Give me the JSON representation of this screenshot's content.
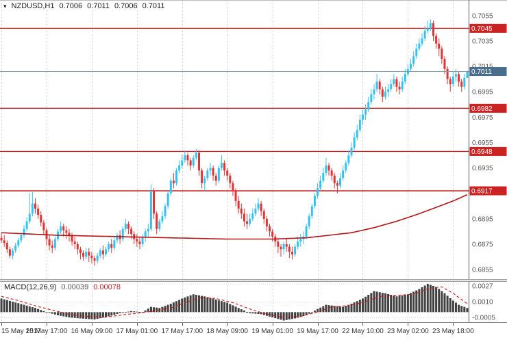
{
  "header": {
    "marker_glyph": "▾",
    "symbol": "NZDUSD,H1",
    "open": "0.7006",
    "high": "0.7011",
    "low": "0.7006",
    "close": "0.7011"
  },
  "macd_panel": {
    "label": "MACD(12,26,9)",
    "value_main": "0.00039",
    "value_signal": "0.00078"
  },
  "colors": {
    "up": "#36c2f0",
    "down": "#e03434",
    "level": "#cc2222",
    "ma": "#b51414",
    "current_line": "#7b9cba",
    "current_badge": "#4a6d8c",
    "hist": "#404040",
    "signal": "#cc2222",
    "grid": "#d4d4d4",
    "tick_text": "#555555",
    "axis_line": "#555555"
  },
  "chart_data": {
    "type": "candlestick",
    "title": "NZDUSD,H1",
    "symbol": "NZDUSD",
    "timeframe": "H1",
    "price_range": {
      "top": 0.70673,
      "bottom": 0.68475
    },
    "macd_range": {
      "top": 0.00289,
      "bottom": -0.00089
    },
    "price_ticks": [
      0.7055,
      0.7035,
      0.7015,
      0.6995,
      0.6975,
      0.6955,
      0.6935,
      0.6895,
      0.6875,
      0.6855
    ],
    "levels": [
      0.7045,
      0.6982,
      0.6948,
      0.6917
    ],
    "current_price": 0.7011,
    "macd_ticks": [
      0.0027,
      0.001,
      -0.0005
    ],
    "time_labels": [
      [
        0,
        "15 May 2017"
      ],
      [
        16,
        "15 May 17:00"
      ],
      [
        32,
        "16 May 09:00"
      ],
      [
        48,
        "17 May 01:00"
      ],
      [
        64,
        "17 May 17:00"
      ],
      [
        80,
        "18 May 09:00"
      ],
      [
        96,
        "19 May 01:00"
      ],
      [
        112,
        "19 May 17:00"
      ],
      [
        128,
        "22 May 10:00"
      ],
      [
        144,
        "23 May 02:00"
      ],
      [
        160,
        "23 May 18:00"
      ]
    ],
    "candles": [
      [
        0.688,
        0.6884,
        0.6876,
        0.6878
      ],
      [
        0.6878,
        0.6882,
        0.6873,
        0.6876
      ],
      [
        0.6876,
        0.6878,
        0.6868,
        0.6871
      ],
      [
        0.6871,
        0.6873,
        0.6864,
        0.6866
      ],
      [
        0.6866,
        0.6872,
        0.6863,
        0.687
      ],
      [
        0.687,
        0.6876,
        0.6868,
        0.6874
      ],
      [
        0.6874,
        0.688,
        0.6872,
        0.6878
      ],
      [
        0.6878,
        0.6884,
        0.6876,
        0.6882
      ],
      [
        0.6882,
        0.689,
        0.688,
        0.6887
      ],
      [
        0.6887,
        0.6896,
        0.6885,
        0.6893
      ],
      [
        0.6893,
        0.6915,
        0.6891,
        0.6899
      ],
      [
        0.6899,
        0.6916,
        0.6897,
        0.6907
      ],
      [
        0.6907,
        0.6911,
        0.6899,
        0.6903
      ],
      [
        0.6903,
        0.6906,
        0.6895,
        0.6898
      ],
      [
        0.6898,
        0.6901,
        0.6889,
        0.6892
      ],
      [
        0.6892,
        0.6894,
        0.6882,
        0.6886
      ],
      [
        0.6886,
        0.6888,
        0.6874,
        0.6879
      ],
      [
        0.6879,
        0.6882,
        0.687,
        0.6874
      ],
      [
        0.6874,
        0.6878,
        0.6868,
        0.6872
      ],
      [
        0.6872,
        0.6881,
        0.687,
        0.6879
      ],
      [
        0.6879,
        0.6887,
        0.6877,
        0.6885
      ],
      [
        0.6885,
        0.6893,
        0.6883,
        0.6889
      ],
      [
        0.6889,
        0.6891,
        0.6881,
        0.6886
      ],
      [
        0.6886,
        0.6889,
        0.6879,
        0.6884
      ],
      [
        0.6884,
        0.6887,
        0.6877,
        0.6882
      ],
      [
        0.6882,
        0.6884,
        0.6874,
        0.6877
      ],
      [
        0.6877,
        0.6881,
        0.6871,
        0.6875
      ],
      [
        0.6875,
        0.6877,
        0.6867,
        0.6871
      ],
      [
        0.6871,
        0.6873,
        0.6863,
        0.6868
      ],
      [
        0.6868,
        0.687,
        0.6862,
        0.6865
      ],
      [
        0.6865,
        0.6872,
        0.6863,
        0.6869
      ],
      [
        0.6869,
        0.6872,
        0.6861,
        0.6866
      ],
      [
        0.6866,
        0.6869,
        0.686,
        0.6864
      ],
      [
        0.6864,
        0.6866,
        0.6858,
        0.6862
      ],
      [
        0.6862,
        0.6868,
        0.686,
        0.6866
      ],
      [
        0.6866,
        0.6872,
        0.6864,
        0.687
      ],
      [
        0.687,
        0.6874,
        0.6863,
        0.6867
      ],
      [
        0.6867,
        0.6873,
        0.6865,
        0.6871
      ],
      [
        0.6871,
        0.6877,
        0.6869,
        0.6875
      ],
      [
        0.6875,
        0.6879,
        0.6868,
        0.6872
      ],
      [
        0.6872,
        0.688,
        0.687,
        0.6878
      ],
      [
        0.6878,
        0.6884,
        0.6876,
        0.6882
      ],
      [
        0.6882,
        0.6886,
        0.6875,
        0.6879
      ],
      [
        0.6879,
        0.6889,
        0.6877,
        0.6887
      ],
      [
        0.6887,
        0.6895,
        0.6885,
        0.6891
      ],
      [
        0.6891,
        0.6893,
        0.6883,
        0.6887
      ],
      [
        0.6887,
        0.6889,
        0.6879,
        0.6883
      ],
      [
        0.6883,
        0.6885,
        0.6875,
        0.6879
      ],
      [
        0.6879,
        0.6883,
        0.6873,
        0.6877
      ],
      [
        0.6877,
        0.6881,
        0.6871,
        0.6875
      ],
      [
        0.6875,
        0.6883,
        0.6873,
        0.6881
      ],
      [
        0.6881,
        0.6887,
        0.6877,
        0.6885
      ],
      [
        0.6885,
        0.6891,
        0.6881,
        0.6887
      ],
      [
        0.6887,
        0.6922,
        0.6885,
        0.6917
      ],
      [
        0.6917,
        0.6919,
        0.6895,
        0.6899
      ],
      [
        0.6899,
        0.6901,
        0.6883,
        0.6887
      ],
      [
        0.6887,
        0.6895,
        0.6885,
        0.6893
      ],
      [
        0.6893,
        0.6901,
        0.6891,
        0.6897
      ],
      [
        0.6897,
        0.6907,
        0.6895,
        0.6905
      ],
      [
        0.6905,
        0.6917,
        0.6903,
        0.6915
      ],
      [
        0.6915,
        0.6927,
        0.6913,
        0.6925
      ],
      [
        0.6925,
        0.6931,
        0.6919,
        0.6923
      ],
      [
        0.6923,
        0.6935,
        0.6921,
        0.6933
      ],
      [
        0.6933,
        0.6941,
        0.6931,
        0.6937
      ],
      [
        0.6937,
        0.6945,
        0.6935,
        0.6941
      ],
      [
        0.6941,
        0.6949,
        0.6939,
        0.6945
      ],
      [
        0.6945,
        0.6947,
        0.6937,
        0.6941
      ],
      [
        0.6941,
        0.6943,
        0.6933,
        0.6937
      ],
      [
        0.6937,
        0.6945,
        0.6935,
        0.6943
      ],
      [
        0.6943,
        0.695,
        0.6941,
        0.6947
      ],
      [
        0.6947,
        0.6949,
        0.6929,
        0.6933
      ],
      [
        0.6933,
        0.6935,
        0.6919,
        0.6923
      ],
      [
        0.6923,
        0.6929,
        0.6917,
        0.6927
      ],
      [
        0.6927,
        0.6935,
        0.6925,
        0.6933
      ],
      [
        0.6933,
        0.6939,
        0.6929,
        0.6935
      ],
      [
        0.6935,
        0.6937,
        0.6925,
        0.6929
      ],
      [
        0.6929,
        0.6931,
        0.6921,
        0.6925
      ],
      [
        0.6925,
        0.6937,
        0.6923,
        0.6935
      ],
      [
        0.6935,
        0.6945,
        0.6933,
        0.6939
      ],
      [
        0.6939,
        0.6941,
        0.6929,
        0.6933
      ],
      [
        0.6933,
        0.6935,
        0.6925,
        0.6929
      ],
      [
        0.6929,
        0.6931,
        0.6919,
        0.6923
      ],
      [
        0.6923,
        0.6925,
        0.6913,
        0.6917
      ],
      [
        0.6917,
        0.6919,
        0.6905,
        0.6909
      ],
      [
        0.6909,
        0.6913,
        0.6899,
        0.6903
      ],
      [
        0.6903,
        0.6907,
        0.6895,
        0.6899
      ],
      [
        0.6899,
        0.6903,
        0.6889,
        0.6893
      ],
      [
        0.6893,
        0.6899,
        0.6887,
        0.6891
      ],
      [
        0.6891,
        0.6899,
        0.6889,
        0.6895
      ],
      [
        0.6895,
        0.6903,
        0.6893,
        0.6899
      ],
      [
        0.6899,
        0.6907,
        0.6897,
        0.6903
      ],
      [
        0.6903,
        0.6911,
        0.6901,
        0.6907
      ],
      [
        0.6907,
        0.6909,
        0.6897,
        0.6901
      ],
      [
        0.6901,
        0.6903,
        0.6891,
        0.6895
      ],
      [
        0.6895,
        0.6897,
        0.6885,
        0.6889
      ],
      [
        0.6889,
        0.6891,
        0.6881,
        0.6885
      ],
      [
        0.6885,
        0.6887,
        0.6877,
        0.6881
      ],
      [
        0.6881,
        0.6883,
        0.6873,
        0.6877
      ],
      [
        0.6877,
        0.6879,
        0.6868,
        0.6873
      ],
      [
        0.6873,
        0.6875,
        0.6865,
        0.6871
      ],
      [
        0.6871,
        0.6877,
        0.6867,
        0.6875
      ],
      [
        0.6875,
        0.6879,
        0.6869,
        0.6873
      ],
      [
        0.6873,
        0.6875,
        0.6864,
        0.6869
      ],
      [
        0.6869,
        0.6873,
        0.6863,
        0.6867
      ],
      [
        0.6867,
        0.6875,
        0.6865,
        0.6873
      ],
      [
        0.6873,
        0.6881,
        0.6871,
        0.6877
      ],
      [
        0.6877,
        0.6883,
        0.6873,
        0.6879
      ],
      [
        0.6879,
        0.6885,
        0.6875,
        0.6881
      ],
      [
        0.6881,
        0.6891,
        0.6879,
        0.6889
      ],
      [
        0.6889,
        0.6899,
        0.6887,
        0.6897
      ],
      [
        0.6897,
        0.6907,
        0.6895,
        0.6905
      ],
      [
        0.6905,
        0.6915,
        0.6903,
        0.6913
      ],
      [
        0.6913,
        0.6923,
        0.6911,
        0.6919
      ],
      [
        0.6919,
        0.6929,
        0.6917,
        0.6925
      ],
      [
        0.6925,
        0.6935,
        0.6923,
        0.6931
      ],
      [
        0.6931,
        0.6943,
        0.6929,
        0.6937
      ],
      [
        0.6937,
        0.6939,
        0.6929,
        0.6933
      ],
      [
        0.6933,
        0.6935,
        0.6925,
        0.6929
      ],
      [
        0.6929,
        0.6931,
        0.6919,
        0.6923
      ],
      [
        0.6923,
        0.6925,
        0.6915,
        0.6921
      ],
      [
        0.6921,
        0.6931,
        0.6919,
        0.6927
      ],
      [
        0.6927,
        0.6937,
        0.6925,
        0.6933
      ],
      [
        0.6933,
        0.6941,
        0.6931,
        0.6939
      ],
      [
        0.6939,
        0.6949,
        0.6937,
        0.6945
      ],
      [
        0.6945,
        0.6955,
        0.6943,
        0.6951
      ],
      [
        0.6951,
        0.6963,
        0.6949,
        0.6959
      ],
      [
        0.6959,
        0.6969,
        0.6957,
        0.6965
      ],
      [
        0.6965,
        0.6977,
        0.6963,
        0.6973
      ],
      [
        0.6973,
        0.6981,
        0.6969,
        0.6977
      ],
      [
        0.6977,
        0.6985,
        0.6973,
        0.6981
      ],
      [
        0.6981,
        0.6991,
        0.6979,
        0.6987
      ],
      [
        0.6987,
        0.6997,
        0.6985,
        0.6993
      ],
      [
        0.6993,
        0.7001,
        0.6989,
        0.6997
      ],
      [
        0.6997,
        0.7009,
        0.6995,
        0.7003
      ],
      [
        0.7003,
        0.7005,
        0.6993,
        0.6997
      ],
      [
        0.6997,
        0.6999,
        0.6987,
        0.6991
      ],
      [
        0.6991,
        0.6999,
        0.6989,
        0.6995
      ],
      [
        0.6995,
        0.7001,
        0.6991,
        0.6997
      ],
      [
        0.6997,
        0.7005,
        0.6995,
        0.7001
      ],
      [
        0.7001,
        0.7009,
        0.6999,
        0.7005
      ],
      [
        0.7005,
        0.7007,
        0.6995,
        0.6999
      ],
      [
        0.6999,
        0.7003,
        0.6993,
        0.6997
      ],
      [
        0.6997,
        0.7007,
        0.6995,
        0.7003
      ],
      [
        0.7003,
        0.7013,
        0.7001,
        0.7009
      ],
      [
        0.7009,
        0.7017,
        0.7007,
        0.7013
      ],
      [
        0.7013,
        0.7021,
        0.7011,
        0.7017
      ],
      [
        0.7017,
        0.7027,
        0.7015,
        0.7023
      ],
      [
        0.7023,
        0.7033,
        0.7021,
        0.7029
      ],
      [
        0.7029,
        0.7037,
        0.7027,
        0.7033
      ],
      [
        0.7033,
        0.7041,
        0.7031,
        0.7037
      ],
      [
        0.7037,
        0.7047,
        0.7035,
        0.7043
      ],
      [
        0.7043,
        0.7051,
        0.7041,
        0.7045
      ],
      [
        0.7045,
        0.7052,
        0.7043,
        0.7049
      ],
      [
        0.7049,
        0.7051,
        0.7035,
        0.7039
      ],
      [
        0.7039,
        0.7041,
        0.7029,
        0.7033
      ],
      [
        0.7033,
        0.7037,
        0.7023,
        0.7029
      ],
      [
        0.7029,
        0.7031,
        0.7017,
        0.7021
      ],
      [
        0.7021,
        0.7023,
        0.7009,
        0.7013
      ],
      [
        0.7013,
        0.7015,
        0.7001,
        0.7005
      ],
      [
        0.7005,
        0.7007,
        0.6995,
        0.7001
      ],
      [
        0.7001,
        0.7011,
        0.6999,
        0.7007
      ],
      [
        0.7007,
        0.7013,
        0.7003,
        0.7009
      ],
      [
        0.7009,
        0.7011,
        0.6999,
        0.7003
      ],
      [
        0.7003,
        0.7005,
        0.6995,
        0.6999
      ],
      [
        0.6999,
        0.7009,
        0.6997,
        0.7006
      ],
      [
        0.7006,
        0.7011,
        0.7006,
        0.7011
      ]
    ],
    "ma_keypoints": [
      [
        0,
        0.6884
      ],
      [
        20,
        0.6882
      ],
      [
        40,
        0.6881
      ],
      [
        60,
        0.688
      ],
      [
        80,
        0.6879
      ],
      [
        96,
        0.6879
      ],
      [
        108,
        0.688
      ],
      [
        116,
        0.6882
      ],
      [
        124,
        0.6884
      ],
      [
        132,
        0.6888
      ],
      [
        140,
        0.6893
      ],
      [
        148,
        0.6899
      ],
      [
        154,
        0.6904
      ],
      [
        160,
        0.6909
      ],
      [
        165,
        0.6914
      ]
    ],
    "macd_keypoints": [
      [
        0,
        0.0013
      ],
      [
        4,
        0.001
      ],
      [
        8,
        0.0007
      ],
      [
        12,
        0.0004
      ],
      [
        16,
        0.0
      ],
      [
        20,
        -0.0003
      ],
      [
        24,
        -0.0005
      ],
      [
        28,
        -0.0006
      ],
      [
        33,
        -0.0007
      ],
      [
        38,
        -0.0004
      ],
      [
        42,
        -0.0001
      ],
      [
        46,
        0.0001
      ],
      [
        50,
        0.0
      ],
      [
        53,
        0.0005
      ],
      [
        56,
        0.0004
      ],
      [
        60,
        0.0008
      ],
      [
        64,
        0.0013
      ],
      [
        68,
        0.0017
      ],
      [
        72,
        0.0015
      ],
      [
        76,
        0.0012
      ],
      [
        80,
        0.0009
      ],
      [
        84,
        0.0004
      ],
      [
        88,
        -0.0001
      ],
      [
        92,
        -0.0002
      ],
      [
        96,
        -0.0005
      ],
      [
        100,
        -0.0008
      ],
      [
        104,
        -0.0006
      ],
      [
        108,
        -0.0003
      ],
      [
        112,
        0.0003
      ],
      [
        115,
        0.0007
      ],
      [
        118,
        0.0006
      ],
      [
        121,
        0.0005
      ],
      [
        124,
        0.0008
      ],
      [
        128,
        0.0013
      ],
      [
        132,
        0.002
      ],
      [
        136,
        0.0018
      ],
      [
        140,
        0.0015
      ],
      [
        144,
        0.0017
      ],
      [
        148,
        0.0022
      ],
      [
        151,
        0.0027
      ],
      [
        154,
        0.0024
      ],
      [
        157,
        0.0018
      ],
      [
        160,
        0.0011
      ],
      [
        162,
        0.0007
      ],
      [
        165,
        0.0004
      ]
    ],
    "signal_keypoints": [
      [
        0,
        0.0015
      ],
      [
        6,
        0.0011
      ],
      [
        12,
        0.0006
      ],
      [
        18,
        0.0002
      ],
      [
        24,
        -0.0002
      ],
      [
        30,
        -0.0004
      ],
      [
        36,
        -0.0005
      ],
      [
        42,
        -0.0003
      ],
      [
        48,
        -0.0001
      ],
      [
        54,
        0.0001
      ],
      [
        60,
        0.0004
      ],
      [
        66,
        0.001
      ],
      [
        71,
        0.0014
      ],
      [
        76,
        0.0013
      ],
      [
        82,
        0.0009
      ],
      [
        88,
        0.0003
      ],
      [
        94,
        -0.0002
      ],
      [
        100,
        -0.0005
      ],
      [
        106,
        -0.0004
      ],
      [
        112,
        0.0
      ],
      [
        117,
        0.0005
      ],
      [
        122,
        0.0006
      ],
      [
        128,
        0.0009
      ],
      [
        134,
        0.0015
      ],
      [
        140,
        0.0016
      ],
      [
        146,
        0.0017
      ],
      [
        152,
        0.0023
      ],
      [
        156,
        0.0024
      ],
      [
        160,
        0.0018
      ],
      [
        163,
        0.0012
      ],
      [
        165,
        0.0008
      ]
    ]
  }
}
